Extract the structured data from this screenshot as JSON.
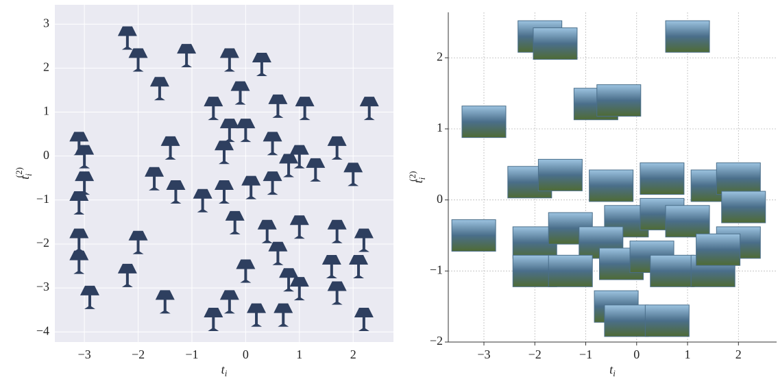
{
  "chart_data": [
    {
      "type": "scatter",
      "style": "panel",
      "xlabel": [
        "t",
        "i"
      ],
      "ylabel": [
        "t",
        "i",
        "(2)"
      ],
      "xlim": [
        -3.55,
        2.75
      ],
      "ylim": [
        -4.23,
        3.44
      ],
      "xticks": [
        {
          "value": -3,
          "label": "−3"
        },
        {
          "value": -2,
          "label": "−2"
        },
        {
          "value": -1,
          "label": "−1"
        },
        0,
        1,
        2
      ],
      "yticks": [
        {
          "value": -4,
          "label": "−4"
        },
        {
          "value": -3,
          "label": "−3"
        },
        {
          "value": -2,
          "label": "−2"
        },
        {
          "value": -1,
          "label": "−1"
        },
        0,
        1,
        2,
        3
      ],
      "grid": true,
      "color": "#2e3f5f",
      "x": [
        -2.2,
        -2.0,
        -1.1,
        -0.3,
        0.3,
        -1.6,
        -0.1,
        0.6,
        1.1,
        2.3,
        -3.1,
        -3.0,
        -1.4,
        -0.6,
        -0.3,
        0.0,
        0.5,
        1.0,
        1.7,
        -1.7,
        -1.3,
        -0.8,
        -0.4,
        -0.4,
        0.1,
        0.5,
        0.8,
        1.3,
        2.0,
        -3.0,
        -3.1,
        -3.1,
        -2.0,
        -0.2,
        0.4,
        0.6,
        1.7,
        2.2,
        -3.1,
        -2.9,
        -2.2,
        -1.5,
        -0.6,
        -0.3,
        0.2,
        0.7,
        1.0,
        1.7,
        2.2,
        0.0,
        0.8,
        1.0,
        1.6,
        2.1
      ],
      "y": [
        2.7,
        2.2,
        2.3,
        2.2,
        2.1,
        1.55,
        1.45,
        1.15,
        1.1,
        1.1,
        0.3,
        0.0,
        0.2,
        1.1,
        0.6,
        0.6,
        0.3,
        0.0,
        0.2,
        -0.5,
        -0.8,
        -1.0,
        -0.8,
        0.1,
        -0.7,
        -0.6,
        -0.2,
        -0.3,
        -0.4,
        -0.6,
        -1.05,
        -1.9,
        -1.95,
        -1.5,
        -1.7,
        -2.2,
        -1.7,
        -1.9,
        -2.4,
        -3.2,
        -2.7,
        -3.3,
        -3.7,
        -3.3,
        -3.6,
        -3.6,
        -3.0,
        -3.1,
        -3.7,
        -2.6,
        -2.8,
        -1.6,
        -2.5,
        -2.5
      ]
    },
    {
      "type": "scatter",
      "style": "spines",
      "xlabel": [
        "t",
        "i"
      ],
      "ylabel": [
        "t",
        "i",
        "(2)"
      ],
      "xlim": [
        -3.7,
        2.75
      ],
      "ylim": [
        -2.0,
        2.64
      ],
      "xticks": [
        {
          "value": -3,
          "label": "−3"
        },
        {
          "value": -2,
          "label": "−2"
        },
        {
          "value": -1,
          "label": "−1"
        },
        0,
        1,
        2
      ],
      "yticks": [
        {
          "value": -2,
          "label": "−2"
        },
        {
          "value": -1,
          "label": "−1"
        },
        0,
        1,
        2
      ],
      "grid": true,
      "color": "#4a6e8a",
      "x": [
        -1.9,
        -1.6,
        1.0,
        -0.8,
        -0.35,
        -3.0,
        -2.1,
        -1.5,
        -0.5,
        0.5,
        1.5,
        2.0,
        2.1,
        -0.2,
        0.5,
        1.0,
        -3.2,
        -2.0,
        -1.3,
        -0.7,
        -0.3,
        0.3,
        0.7,
        1.5,
        2.0,
        1.6,
        -2.0,
        -1.3,
        -0.4,
        -0.2,
        0.6
      ],
      "y": [
        2.3,
        2.2,
        2.3,
        1.35,
        1.4,
        1.1,
        0.25,
        0.35,
        0.2,
        0.3,
        0.2,
        0.3,
        -0.1,
        -0.3,
        -0.2,
        -0.3,
        -0.5,
        -0.6,
        -0.4,
        -0.6,
        -0.9,
        -0.8,
        -1.0,
        -1.0,
        -0.6,
        -0.7,
        -1.0,
        -1.0,
        -1.5,
        -1.7,
        -1.7
      ]
    }
  ]
}
